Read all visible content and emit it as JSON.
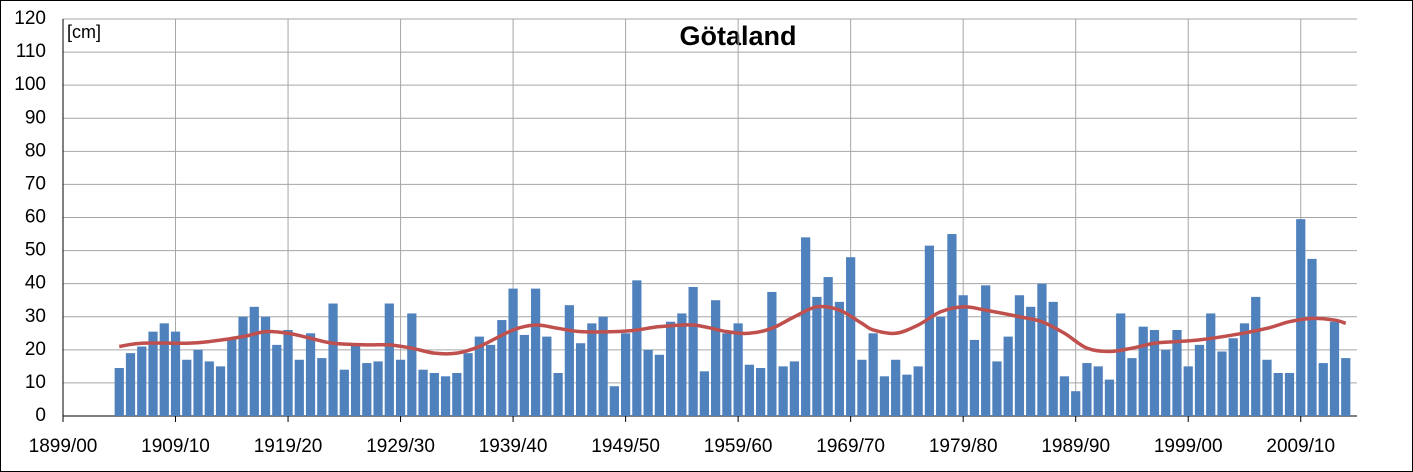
{
  "chart_data": {
    "type": "bar",
    "title": "Götaland",
    "annotation": "[cm]",
    "x": [
      1904,
      1905,
      1906,
      1907,
      1908,
      1909,
      1910,
      1911,
      1912,
      1913,
      1914,
      1915,
      1916,
      1917,
      1918,
      1919,
      1920,
      1921,
      1922,
      1923,
      1924,
      1925,
      1926,
      1927,
      1928,
      1929,
      1930,
      1931,
      1932,
      1933,
      1934,
      1935,
      1936,
      1937,
      1938,
      1939,
      1940,
      1941,
      1942,
      1943,
      1944,
      1945,
      1946,
      1947,
      1948,
      1949,
      1950,
      1951,
      1952,
      1953,
      1954,
      1955,
      1956,
      1957,
      1958,
      1959,
      1960,
      1961,
      1962,
      1963,
      1964,
      1965,
      1966,
      1967,
      1968,
      1969,
      1970,
      1971,
      1972,
      1973,
      1974,
      1975,
      1976,
      1977,
      1978,
      1979,
      1980,
      1981,
      1982,
      1983,
      1984,
      1985,
      1986,
      1987,
      1988,
      1989,
      1990,
      1991,
      1992,
      1993,
      1994,
      1995,
      1996,
      1997,
      1998,
      1999,
      2000,
      2001,
      2002,
      2003,
      2004,
      2005,
      2006,
      2007,
      2008,
      2009,
      2010,
      2011,
      2012,
      2013
    ],
    "values": [
      14.5,
      19,
      21,
      25.5,
      28,
      25.5,
      17,
      20,
      16.5,
      15,
      23.5,
      30,
      33,
      30,
      21.5,
      26,
      17,
      25,
      17.5,
      34,
      14,
      21.5,
      16,
      16.5,
      34,
      17,
      31,
      14,
      13,
      12,
      13,
      19,
      24,
      21.5,
      29,
      38.5,
      24.5,
      38.5,
      24,
      13,
      33.5,
      22,
      28,
      30,
      9,
      25,
      41,
      20,
      18.5,
      28.5,
      31,
      39,
      13.5,
      35,
      25,
      28,
      15.5,
      14.5,
      37.5,
      15,
      16.5,
      54,
      36,
      42,
      34.5,
      48,
      17,
      25,
      12,
      17,
      12.5,
      15,
      51.5,
      30,
      55,
      36.5,
      23,
      39.5,
      16.5,
      24,
      36.5,
      33,
      40,
      34.5,
      12,
      7.5,
      16,
      15,
      11,
      31,
      17.5,
      27,
      26,
      20,
      26,
      15,
      21.5,
      31,
      19.5,
      23.5,
      28,
      36,
      17,
      13,
      13,
      59.5,
      47.5,
      16,
      28.5,
      17.5
    ],
    "color": "#4f81bd",
    "line": {
      "color": "#c0504d",
      "x": [
        1904,
        1906,
        1910,
        1912,
        1915,
        1917,
        1919,
        1921,
        1923,
        1926,
        1928,
        1930,
        1932,
        1934,
        1936,
        1939,
        1941,
        1943,
        1945,
        1948,
        1950,
        1952,
        1955,
        1958,
        1960,
        1962,
        1964,
        1966,
        1968,
        1970,
        1971,
        1973,
        1975,
        1977,
        1979,
        1981,
        1984,
        1986,
        1988,
        1990,
        1992,
        1994,
        1996,
        1998,
        2000,
        2003,
        2006,
        2008,
        2010,
        2012,
        2013
      ],
      "values": [
        21,
        22,
        22,
        22.5,
        24,
        25.5,
        25,
        23.5,
        22,
        21.5,
        21.5,
        20.5,
        19,
        19,
        21,
        26,
        27.5,
        26.5,
        25.5,
        25.5,
        26,
        27,
        27.5,
        25.5,
        25,
        26.5,
        30,
        33,
        32,
        28,
        26,
        25,
        27.5,
        31.5,
        33,
        32,
        30,
        28.5,
        25,
        20.5,
        19.5,
        20.5,
        22,
        22.5,
        23,
        24.5,
        26.5,
        28.5,
        29.5,
        29,
        28
      ]
    },
    "xlim": [
      1899,
      2014
    ],
    "xticks": [
      {
        "value": 1899,
        "label": "1899/00"
      },
      {
        "value": 1909,
        "label": "1909/10"
      },
      {
        "value": 1919,
        "label": "1919/20"
      },
      {
        "value": 1929,
        "label": "1929/30"
      },
      {
        "value": 1939,
        "label": "1939/40"
      },
      {
        "value": 1949,
        "label": "1949/50"
      },
      {
        "value": 1959,
        "label": "1959/60"
      },
      {
        "value": 1969,
        "label": "1969/70"
      },
      {
        "value": 1979,
        "label": "1979/80"
      },
      {
        "value": 1989,
        "label": "1989/90"
      },
      {
        "value": 1999,
        "label": "1999/00"
      },
      {
        "value": 2009,
        "label": "2009/10"
      }
    ],
    "ylim": [
      0,
      120
    ],
    "yticks": [
      0,
      10,
      20,
      30,
      40,
      50,
      60,
      70,
      80,
      90,
      100,
      110,
      120
    ],
    "grid": true
  }
}
